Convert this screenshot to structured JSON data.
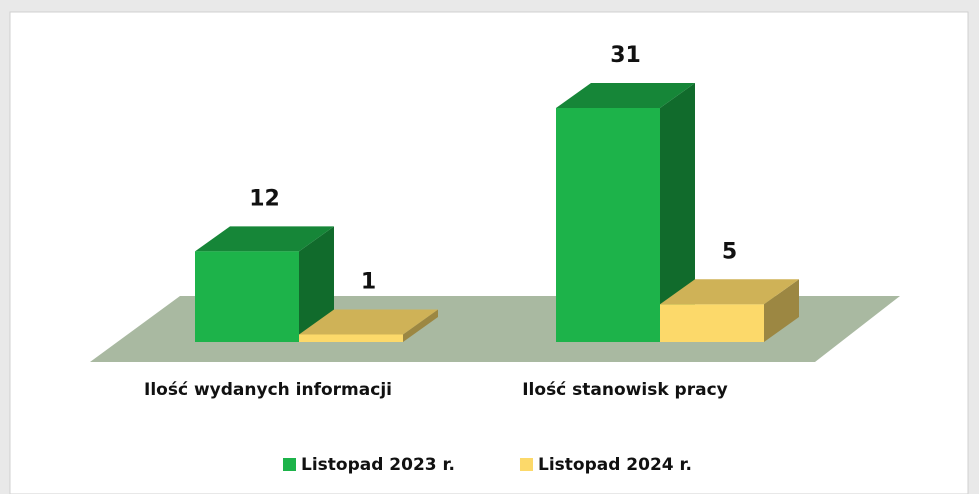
{
  "chart_data": {
    "type": "bar3d",
    "categories": [
      "Ilość wydanych informacji",
      "Ilość stanowisk pracy"
    ],
    "series": [
      {
        "name": "Listopad 2023 r.",
        "color": "#1db34a",
        "values": [
          12,
          31
        ]
      },
      {
        "name": "Listopad 2024 r.",
        "color": "#fcd96a",
        "values": [
          1,
          5
        ]
      }
    ]
  }
}
